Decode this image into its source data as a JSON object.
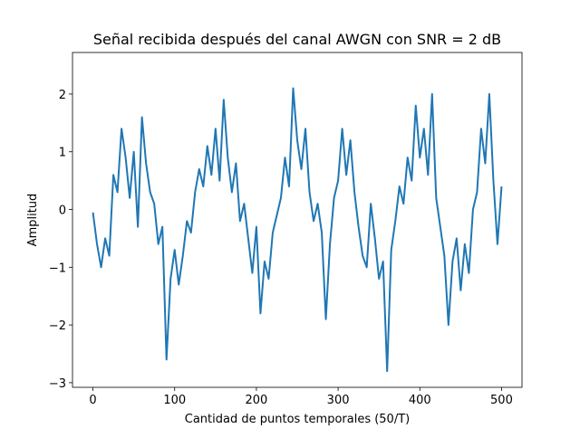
{
  "chart_data": {
    "type": "line",
    "title": "Señal recibida después del canal AWGN con SNR = 2 dB",
    "xlabel": "Cantidad de puntos temporales (50/T)",
    "ylabel": "Amplitud",
    "xlim": [
      -25,
      525
    ],
    "ylim": [
      -3.08,
      2.72
    ],
    "xticks": [
      0,
      100,
      200,
      300,
      400,
      500
    ],
    "yticks": [
      {
        "value": -3,
        "label": "−3"
      },
      {
        "value": -2,
        "label": "−2"
      },
      {
        "value": -1,
        "label": "−1"
      },
      0,
      1,
      2
    ],
    "x": [
      0,
      5,
      10,
      15,
      20,
      25,
      30,
      35,
      40,
      45,
      50,
      55,
      60,
      65,
      70,
      75,
      80,
      85,
      90,
      95,
      100,
      105,
      110,
      115,
      120,
      125,
      130,
      135,
      140,
      145,
      150,
      155,
      160,
      165,
      170,
      175,
      180,
      185,
      190,
      195,
      200,
      205,
      210,
      215,
      220,
      225,
      230,
      235,
      240,
      245,
      250,
      255,
      260,
      265,
      270,
      275,
      280,
      285,
      290,
      295,
      300,
      305,
      310,
      315,
      320,
      325,
      330,
      335,
      340,
      345,
      350,
      355,
      360,
      365,
      370,
      375,
      380,
      385,
      390,
      395,
      400,
      405,
      410,
      415,
      420,
      425,
      430,
      435,
      440,
      445,
      450,
      455,
      460,
      465,
      470,
      475,
      480,
      485,
      490,
      495,
      500
    ],
    "series": [
      {
        "color": "#1f77b4",
        "values": [
          -0.05,
          -0.6,
          -1.0,
          -0.5,
          -0.8,
          0.6,
          0.3,
          1.4,
          0.9,
          0.2,
          1.0,
          -0.3,
          1.6,
          0.8,
          0.3,
          0.1,
          -0.6,
          -0.3,
          -2.6,
          -1.2,
          -0.7,
          -1.3,
          -0.8,
          -0.2,
          -0.4,
          0.3,
          0.7,
          0.4,
          1.1,
          0.6,
          1.4,
          0.5,
          1.9,
          0.9,
          0.3,
          0.8,
          -0.2,
          0.1,
          -0.5,
          -1.1,
          -0.3,
          -1.8,
          -0.9,
          -1.2,
          -0.4,
          -0.1,
          0.2,
          0.9,
          0.4,
          2.1,
          1.2,
          0.7,
          1.4,
          0.3,
          -0.2,
          0.1,
          -0.4,
          -1.9,
          -0.6,
          0.2,
          0.5,
          1.4,
          0.6,
          1.2,
          0.3,
          -0.3,
          -0.8,
          -1.0,
          0.1,
          -0.5,
          -1.2,
          -0.9,
          -2.8,
          -0.7,
          -0.2,
          0.4,
          0.1,
          0.9,
          0.5,
          1.8,
          0.9,
          1.4,
          0.6,
          2.0,
          0.2,
          -0.3,
          -0.8,
          -2.0,
          -0.9,
          -0.5,
          -1.4,
          -0.6,
          -1.1,
          0.0,
          0.3,
          1.4,
          0.8,
          2.0,
          0.5,
          -0.6,
          0.4
        ]
      }
    ]
  }
}
